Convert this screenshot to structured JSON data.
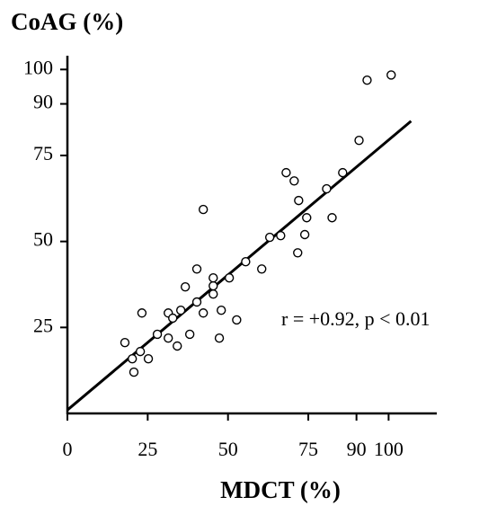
{
  "chart_data": {
    "type": "scatter",
    "x_label": "MDCT (%)",
    "y_label": "CoAG (%)",
    "annotation": "r = +0.92,  p < 0.01",
    "xlim": [
      0,
      115
    ],
    "ylim": [
      0,
      104
    ],
    "xticks": [
      0,
      25,
      50,
      75,
      90,
      100
    ],
    "yticks": [
      25,
      50,
      75,
      90,
      100
    ],
    "color": "#000000",
    "x": [
      17.9,
      20.2,
      20.7,
      22.7,
      25.2,
      23.2,
      28.0,
      31.4,
      31.4,
      32.8,
      34.2,
      35.3,
      36.7,
      38.1,
      40.3,
      40.3,
      42.3,
      42.3,
      45.4,
      45.4,
      45.4,
      47.9,
      47.3,
      50.4,
      52.7,
      55.5,
      60.5,
      63.0,
      66.4,
      68.1,
      70.6,
      71.7,
      72.0,
      73.9,
      74.5,
      80.7,
      82.4,
      85.7,
      90.8,
      93.3,
      100.8
    ],
    "values": [
      20.6,
      15.9,
      12.0,
      18.0,
      15.9,
      29.2,
      23.0,
      29.2,
      21.9,
      27.7,
      19.6,
      30.0,
      36.8,
      23.0,
      32.4,
      42.0,
      59.3,
      29.2,
      34.7,
      37.1,
      39.4,
      30.0,
      21.9,
      39.4,
      27.2,
      44.1,
      42.0,
      51.2,
      51.7,
      70.0,
      67.6,
      46.7,
      61.9,
      52.0,
      56.9,
      65.3,
      56.9,
      70.0,
      79.4,
      96.9,
      98.4
    ],
    "fit_line": {
      "x": [
        0,
        107
      ],
      "y": [
        1,
        85
      ]
    }
  }
}
